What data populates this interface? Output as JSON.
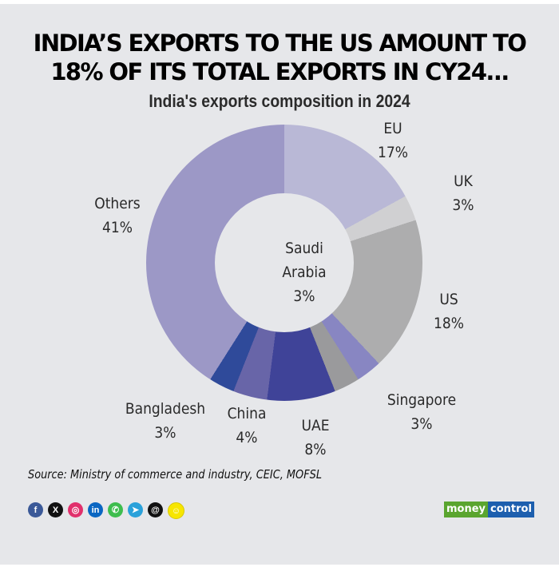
{
  "header": {
    "title_line1": "INDIA’S EXPORTS TO THE US AMOUNT TO",
    "title_line2": "18% OF ITS TOTAL EXPORTS IN CY24...",
    "subtitle": "India's exports composition in 2024"
  },
  "labels": {
    "eu": {
      "name": "EU",
      "pct": "17%"
    },
    "uk": {
      "name": "UK",
      "pct": "3%"
    },
    "us": {
      "name": "US",
      "pct": "18%"
    },
    "singapore": {
      "name": "Singapore",
      "pct": "3%"
    },
    "saudi": {
      "name1": "Saudi",
      "name2": "Arabia",
      "pct": "3%"
    },
    "uae": {
      "name": "UAE",
      "pct": "8%"
    },
    "china": {
      "name": "China",
      "pct": "4%"
    },
    "bangladesh": {
      "name": "Bangladesh",
      "pct": "3%"
    },
    "others": {
      "name": "Others",
      "pct": "41%"
    }
  },
  "chart_data": {
    "type": "pie",
    "donut": true,
    "title": "India's exports composition in 2024",
    "headline": "INDIA’S EXPORTS TO THE US AMOUNT TO 18% OF ITS TOTAL EXPORTS IN CY24...",
    "categories": [
      "EU",
      "UK",
      "US",
      "Singapore",
      "Saudi Arabia",
      "UAE",
      "China",
      "Bangladesh",
      "Others"
    ],
    "values": [
      17,
      3,
      18,
      3,
      3,
      8,
      4,
      3,
      41
    ],
    "unit": "%",
    "colors": [
      "#b9b8d6",
      "#d0d0d2",
      "#adadae",
      "#8886c2",
      "#9a9a9c",
      "#3f4398",
      "#6865a8",
      "#2f4a9a",
      "#9c98c6"
    ],
    "start_angle": "top, clockwise"
  },
  "footer": {
    "source": "Source: Ministry of commerce and industry, CEIC, MOFSL",
    "social": [
      {
        "name": "facebook",
        "glyph": "f",
        "color": "#3b5998"
      },
      {
        "name": "x",
        "glyph": "X",
        "color": "#111111"
      },
      {
        "name": "instagram",
        "glyph": "◎",
        "color": "#e1306c"
      },
      {
        "name": "linkedin",
        "glyph": "in",
        "color": "#0a66c2"
      },
      {
        "name": "whatsapp",
        "glyph": "✆",
        "color": "#3ebd4e"
      },
      {
        "name": "telegram",
        "glyph": "➤",
        "color": "#2aa1da"
      },
      {
        "name": "threads",
        "glyph": "@",
        "color": "#111111"
      },
      {
        "name": "snapchat",
        "glyph": "☺",
        "color": "#f7e600"
      }
    ],
    "logo_left": "money",
    "logo_right": "control"
  }
}
